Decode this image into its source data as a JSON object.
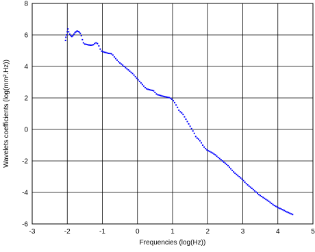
{
  "chart_data": {
    "type": "scatter",
    "title": "",
    "xlabel": "Frequencies (log(Hz))",
    "ylabel": "Wavelets coefficients (log(mm².Hz))",
    "xlim": [
      -3,
      5
    ],
    "ylim": [
      -6,
      8
    ],
    "xticks": [
      "-3",
      "-2",
      "-1",
      "0",
      "1",
      "2",
      "3",
      "4",
      "5"
    ],
    "yticks": [
      "8",
      "6",
      "4",
      "2",
      "0",
      "-2",
      "-4",
      "-6"
    ],
    "grid": true,
    "marker_color": "#0000ff",
    "series": [
      {
        "points": [
          [
            -2.05,
            5.65
          ],
          [
            -2.04,
            5.85
          ],
          [
            -2.02,
            6.0
          ],
          [
            -2.0,
            6.2
          ],
          [
            -1.98,
            6.38
          ],
          [
            -1.96,
            6.2
          ],
          [
            -1.93,
            6.05
          ],
          [
            -1.9,
            5.95
          ],
          [
            -1.87,
            5.9
          ],
          [
            -1.84,
            5.95
          ],
          [
            -1.81,
            6.05
          ],
          [
            -1.78,
            6.15
          ],
          [
            -1.75,
            6.2
          ],
          [
            -1.72,
            6.25
          ],
          [
            -1.69,
            6.22
          ],
          [
            -1.66,
            6.18
          ],
          [
            -1.63,
            6.1
          ],
          [
            -1.6,
            5.95
          ],
          [
            -1.57,
            5.7
          ],
          [
            -1.54,
            5.5
          ],
          [
            -1.5,
            5.42
          ],
          [
            -1.46,
            5.4
          ],
          [
            -1.42,
            5.38
          ],
          [
            -1.38,
            5.36
          ],
          [
            -1.34,
            5.35
          ],
          [
            -1.3,
            5.35
          ],
          [
            -1.26,
            5.38
          ],
          [
            -1.22,
            5.45
          ],
          [
            -1.18,
            5.5
          ],
          [
            -1.14,
            5.45
          ],
          [
            -1.1,
            5.3
          ],
          [
            -1.06,
            5.1
          ],
          [
            -1.02,
            4.97
          ],
          [
            -0.98,
            4.93
          ],
          [
            -0.94,
            4.9
          ],
          [
            -0.9,
            4.88
          ],
          [
            -0.86,
            4.85
          ],
          [
            -0.82,
            4.83
          ],
          [
            -0.78,
            4.82
          ],
          [
            -0.74,
            4.8
          ],
          [
            -0.7,
            4.72
          ],
          [
            -0.66,
            4.6
          ],
          [
            -0.62,
            4.5
          ],
          [
            -0.58,
            4.4
          ],
          [
            -0.54,
            4.3
          ],
          [
            -0.5,
            4.22
          ],
          [
            -0.46,
            4.15
          ],
          [
            -0.42,
            4.08
          ],
          [
            -0.38,
            4.0
          ],
          [
            -0.34,
            3.92
          ],
          [
            -0.3,
            3.85
          ],
          [
            -0.26,
            3.78
          ],
          [
            -0.22,
            3.7
          ],
          [
            -0.18,
            3.62
          ],
          [
            -0.14,
            3.55
          ],
          [
            -0.1,
            3.45
          ],
          [
            -0.06,
            3.35
          ],
          [
            -0.02,
            3.25
          ],
          [
            0.02,
            3.15
          ],
          [
            0.06,
            3.05
          ],
          [
            0.1,
            2.95
          ],
          [
            0.14,
            2.85
          ],
          [
            0.18,
            2.75
          ],
          [
            0.22,
            2.65
          ],
          [
            0.26,
            2.58
          ],
          [
            0.3,
            2.55
          ],
          [
            0.34,
            2.52
          ],
          [
            0.38,
            2.5
          ],
          [
            0.42,
            2.48
          ],
          [
            0.46,
            2.45
          ],
          [
            0.5,
            2.35
          ],
          [
            0.54,
            2.25
          ],
          [
            0.58,
            2.2
          ],
          [
            0.62,
            2.18
          ],
          [
            0.66,
            2.15
          ],
          [
            0.7,
            2.12
          ],
          [
            0.74,
            2.1
          ],
          [
            0.78,
            2.08
          ],
          [
            0.82,
            2.06
          ],
          [
            0.86,
            2.04
          ],
          [
            0.9,
            2.02
          ],
          [
            0.94,
            1.98
          ],
          [
            0.98,
            1.92
          ],
          [
            1.02,
            1.82
          ],
          [
            1.06,
            1.7
          ],
          [
            1.1,
            1.55
          ],
          [
            1.14,
            1.4
          ],
          [
            1.18,
            1.22
          ],
          [
            1.22,
            1.12
          ],
          [
            1.26,
            1.05
          ],
          [
            1.3,
            0.95
          ],
          [
            1.34,
            0.8
          ],
          [
            1.38,
            0.65
          ],
          [
            1.42,
            0.5
          ],
          [
            1.46,
            0.35
          ],
          [
            1.5,
            0.2
          ],
          [
            1.54,
            0.05
          ],
          [
            1.58,
            -0.1
          ],
          [
            1.62,
            -0.25
          ],
          [
            1.66,
            -0.45
          ],
          [
            1.7,
            -0.55
          ],
          [
            1.74,
            -0.62
          ],
          [
            1.78,
            -0.72
          ],
          [
            1.82,
            -0.85
          ],
          [
            1.86,
            -1.0
          ],
          [
            1.9,
            -1.12
          ],
          [
            1.94,
            -1.22
          ],
          [
            1.98,
            -1.3
          ],
          [
            2.02,
            -1.36
          ],
          [
            2.06,
            -1.4
          ],
          [
            2.1,
            -1.45
          ],
          [
            2.14,
            -1.5
          ],
          [
            2.18,
            -1.56
          ],
          [
            2.22,
            -1.62
          ],
          [
            2.26,
            -1.7
          ],
          [
            2.3,
            -1.78
          ],
          [
            2.34,
            -1.85
          ],
          [
            2.38,
            -1.92
          ],
          [
            2.42,
            -2.0
          ],
          [
            2.46,
            -2.08
          ],
          [
            2.5,
            -2.15
          ],
          [
            2.54,
            -2.22
          ],
          [
            2.58,
            -2.3
          ],
          [
            2.62,
            -2.4
          ],
          [
            2.66,
            -2.5
          ],
          [
            2.7,
            -2.6
          ],
          [
            2.74,
            -2.7
          ],
          [
            2.78,
            -2.78
          ],
          [
            2.82,
            -2.86
          ],
          [
            2.86,
            -2.93
          ],
          [
            2.9,
            -3.0
          ],
          [
            2.94,
            -3.08
          ],
          [
            2.98,
            -3.16
          ],
          [
            3.02,
            -3.25
          ],
          [
            3.06,
            -3.35
          ],
          [
            3.1,
            -3.44
          ],
          [
            3.14,
            -3.52
          ],
          [
            3.18,
            -3.6
          ],
          [
            3.22,
            -3.67
          ],
          [
            3.26,
            -3.74
          ],
          [
            3.3,
            -3.82
          ],
          [
            3.34,
            -3.9
          ],
          [
            3.38,
            -3.98
          ],
          [
            3.42,
            -4.06
          ],
          [
            3.46,
            -4.14
          ],
          [
            3.5,
            -4.2
          ],
          [
            3.54,
            -4.26
          ],
          [
            3.58,
            -4.32
          ],
          [
            3.62,
            -4.38
          ],
          [
            3.66,
            -4.44
          ],
          [
            3.7,
            -4.5
          ],
          [
            3.74,
            -4.56
          ],
          [
            3.78,
            -4.63
          ],
          [
            3.82,
            -4.7
          ],
          [
            3.86,
            -4.77
          ],
          [
            3.9,
            -4.83
          ],
          [
            3.94,
            -4.88
          ],
          [
            3.98,
            -4.93
          ],
          [
            4.02,
            -4.98
          ],
          [
            4.06,
            -5.02
          ],
          [
            4.1,
            -5.06
          ],
          [
            4.14,
            -5.1
          ],
          [
            4.18,
            -5.15
          ],
          [
            4.22,
            -5.2
          ],
          [
            4.26,
            -5.24
          ],
          [
            4.3,
            -5.28
          ],
          [
            4.34,
            -5.32
          ],
          [
            4.38,
            -5.36
          ],
          [
            4.42,
            -5.4
          ]
        ]
      }
    ]
  }
}
